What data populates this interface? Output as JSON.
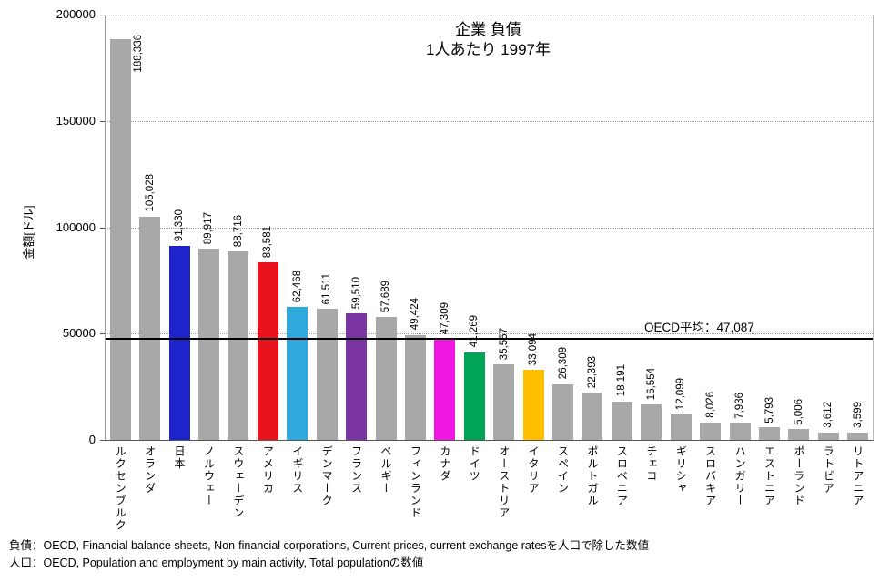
{
  "chart_data": {
    "type": "bar",
    "title": "企業 負債 1人あたり 1997年",
    "title_line1": "企業 負債",
    "title_line2": "1人あたり 1997年",
    "ylabel": "金額[ドル]",
    "xlabel": "",
    "ylim": [
      0,
      200000
    ],
    "yticks": [
      0,
      50000,
      100000,
      150000,
      200000
    ],
    "grid": "horizontal-dotted",
    "legend": "none",
    "average_line": {
      "label": "OECD平均：47,087",
      "value": 47087
    },
    "default_bar_color": "#a8a8a8",
    "bars": [
      {
        "label": "ルクセンブルク",
        "value": 188336,
        "color": "#a8a8a8"
      },
      {
        "label": "オランダ",
        "value": 105028,
        "color": "#a8a8a8"
      },
      {
        "label": "日本",
        "value": 91330,
        "color": "#1e24cc"
      },
      {
        "label": "ノルウェー",
        "value": 89917,
        "color": "#a8a8a8"
      },
      {
        "label": "スウェーデン",
        "value": 88716,
        "color": "#a8a8a8"
      },
      {
        "label": "アメリカ",
        "value": 83581,
        "color": "#e8121c"
      },
      {
        "label": "イギリス",
        "value": 62468,
        "color": "#2fa9dd"
      },
      {
        "label": "デンマーク",
        "value": 61511,
        "color": "#a8a8a8"
      },
      {
        "label": "フランス",
        "value": 59510,
        "color": "#7a35a3"
      },
      {
        "label": "ベルギー",
        "value": 57689,
        "color": "#a8a8a8"
      },
      {
        "label": "フィンランド",
        "value": 49424,
        "color": "#a8a8a8"
      },
      {
        "label": "カナダ",
        "value": 47309,
        "color": "#f216e3"
      },
      {
        "label": "ドイツ",
        "value": 41269,
        "color": "#00a457"
      },
      {
        "label": "オーストリア",
        "value": 35557,
        "color": "#a8a8a8"
      },
      {
        "label": "イタリア",
        "value": 33094,
        "color": "#ffbf00"
      },
      {
        "label": "スペイン",
        "value": 26309,
        "color": "#a8a8a8"
      },
      {
        "label": "ポルトガル",
        "value": 22393,
        "color": "#a8a8a8"
      },
      {
        "label": "スロベニア",
        "value": 18191,
        "color": "#a8a8a8"
      },
      {
        "label": "チェコ",
        "value": 16554,
        "color": "#a8a8a8"
      },
      {
        "label": "ギリシャ",
        "value": 12099,
        "color": "#a8a8a8"
      },
      {
        "label": "スロバキア",
        "value": 8026,
        "color": "#a8a8a8"
      },
      {
        "label": "ハンガリー",
        "value": 7936,
        "color": "#a8a8a8"
      },
      {
        "label": "エストニア",
        "value": 5793,
        "color": "#a8a8a8"
      },
      {
        "label": "ポーランド",
        "value": 5006,
        "color": "#a8a8a8"
      },
      {
        "label": "ラトビア",
        "value": 3612,
        "color": "#a8a8a8"
      },
      {
        "label": "リトアニア",
        "value": 3599,
        "color": "#a8a8a8"
      }
    ]
  },
  "footnotes": {
    "line1": "負債：OECD, Financial balance sheets, Non-financial corporations, Current prices, current exchange ratesを人口で除した数値",
    "line2": "人口：OECD, Population and employment by main activity, Total populationの数値"
  }
}
